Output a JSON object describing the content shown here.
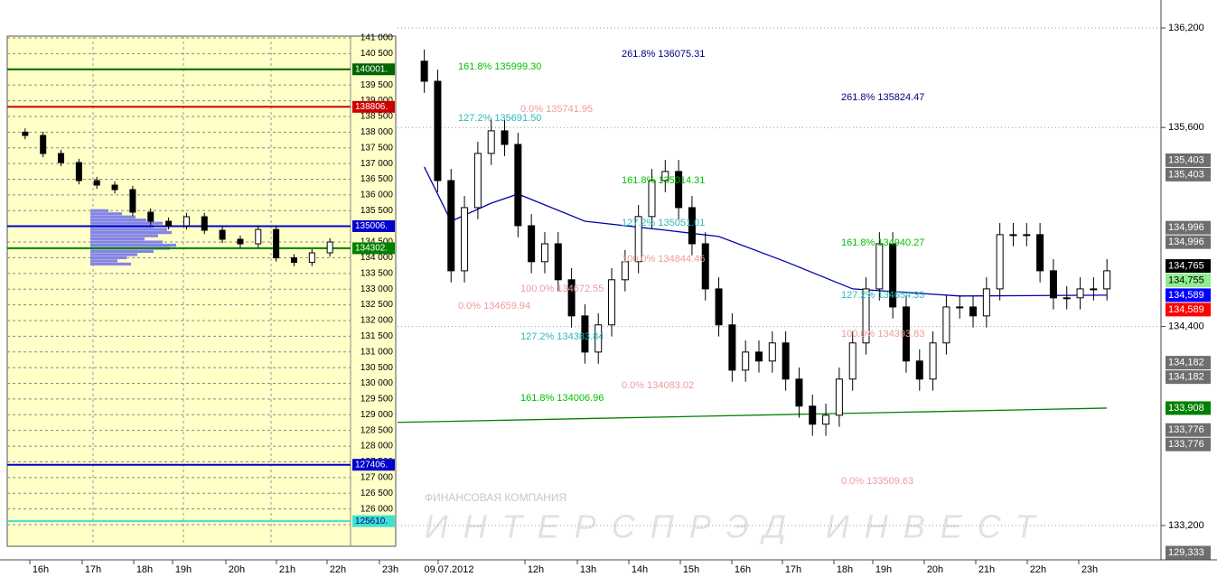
{
  "chart_data": [
    {
      "type": "candlestick",
      "x": [
        0,
        1,
        2,
        3,
        4,
        5,
        6,
        7,
        8,
        9,
        10,
        11,
        12,
        13,
        14,
        15,
        16,
        17,
        18,
        19,
        20,
        21,
        22,
        23,
        24,
        25,
        26,
        27,
        28,
        29,
        30,
        31,
        32,
        33,
        34,
        35,
        36,
        37,
        38,
        39,
        40,
        41,
        42,
        43,
        44,
        45,
        46,
        47,
        48,
        49,
        50,
        51
      ],
      "open": [
        136000,
        135879,
        135280,
        134736,
        135117,
        135444,
        135580,
        135498,
        135008,
        134791,
        134899,
        134682,
        134464,
        134246,
        134410,
        134682,
        134791,
        135063,
        135280,
        135335,
        135117,
        134899,
        134627,
        134410,
        134137,
        134246,
        134192,
        134301,
        134083,
        133920,
        133811,
        133865,
        134083,
        134301,
        134627,
        134899,
        134518,
        134192,
        134083,
        134301,
        134518,
        134518,
        134464,
        134627,
        134954,
        134954,
        134954,
        134736,
        134573,
        134573,
        134627,
        134627
      ],
      "high": [
        136070,
        135949,
        135350,
        135187,
        135514,
        135650,
        135650,
        135568,
        135078,
        134969,
        134969,
        134752,
        134534,
        134480,
        134752,
        134861,
        135133,
        135350,
        135405,
        135405,
        135187,
        134969,
        134697,
        134480,
        134316,
        134316,
        134371,
        134371,
        134153,
        133990,
        133935,
        134153,
        134371,
        134697,
        134969,
        134969,
        134588,
        134262,
        134371,
        134588,
        134588,
        134588,
        134697,
        135024,
        135024,
        135024,
        135024,
        134806,
        134643,
        134697,
        134697,
        134806
      ],
      "low": [
        135809,
        135210,
        134666,
        134666,
        135047,
        135374,
        135428,
        134938,
        134721,
        134721,
        134612,
        134394,
        134176,
        134176,
        134340,
        134612,
        134721,
        134993,
        135210,
        135047,
        134829,
        134557,
        134340,
        134067,
        134067,
        134122,
        134122,
        134013,
        133850,
        133741,
        133741,
        133795,
        134013,
        134231,
        134557,
        134448,
        134122,
        134013,
        134013,
        134231,
        134448,
        134394,
        134394,
        134557,
        134884,
        134884,
        134666,
        134503,
        134503,
        134503,
        134557,
        134557
      ],
      "close": [
        135879,
        135280,
        134736,
        135117,
        135444,
        135580,
        135498,
        135008,
        134791,
        134899,
        134682,
        134464,
        134246,
        134410,
        134682,
        134791,
        135063,
        135280,
        135335,
        135117,
        134899,
        134627,
        134410,
        134137,
        134246,
        134192,
        134301,
        134083,
        133920,
        133811,
        133865,
        134083,
        134301,
        134627,
        134899,
        134518,
        134192,
        134083,
        134301,
        134518,
        134518,
        134464,
        134627,
        134954,
        134954,
        134954,
        134736,
        134573,
        134573,
        134627,
        134627,
        134736
      ],
      "xlim": [
        -2,
        52
      ],
      "ylim": [
        132993,
        136369
      ],
      "yticks": [
        {
          "value": 136200,
          "label": "136,200"
        },
        {
          "value": 135600,
          "label": "135,600"
        },
        {
          "value": 134400,
          "label": "134,400"
        },
        {
          "value": 133200,
          "label": "133,200"
        }
      ],
      "grid": true,
      "lines": [
        {
          "color": "#0000b0",
          "x": [
            0,
            2,
            5,
            7,
            12,
            18,
            22,
            27,
            32,
            40,
            51
          ],
          "values": [
            135362,
            135035,
            135144,
            135199,
            135035,
            134981,
            134943,
            134791,
            134627,
            134584,
            134589
          ]
        },
        {
          "color": "#008000",
          "x": [
            -2,
            51
          ],
          "values": [
            133822,
            133908
          ]
        }
      ],
      "price_tags": [
        {
          "value": 135403,
          "label": "135,403",
          "color": "#6e6e6e",
          "text_color": "#ffffff"
        },
        {
          "value": 135403,
          "label": "135,403",
          "color": "#6e6e6e",
          "text_color": "#ffffff"
        },
        {
          "value": 134996,
          "label": "134,996",
          "color": "#6e6e6e",
          "text_color": "#ffffff"
        },
        {
          "value": 134996,
          "label": "134,996",
          "color": "#6e6e6e",
          "text_color": "#ffffff"
        },
        {
          "value": 134765,
          "label": "134,765",
          "color": "#000000",
          "text_color": "#ffffff"
        },
        {
          "value": 134755,
          "label": "134,755",
          "color": "#90ee90",
          "text_color": "#000000"
        },
        {
          "value": 134589,
          "label": "134,589",
          "color": "#0000ff",
          "text_color": "#ffffff"
        },
        {
          "value": 134589,
          "label": "134,589",
          "color": "#ff0000",
          "text_color": "#ffffff"
        },
        {
          "value": 134182,
          "label": "134,182",
          "color": "#6e6e6e",
          "text_color": "#ffffff"
        },
        {
          "value": 134182,
          "label": "134,182",
          "color": "#6e6e6e",
          "text_color": "#ffffff"
        },
        {
          "value": 133908,
          "label": "133,908",
          "color": "#008000",
          "text_color": "#ffffff"
        },
        {
          "value": 133776,
          "label": "133,776",
          "color": "#6e6e6e",
          "text_color": "#ffffff"
        },
        {
          "value": 133776,
          "label": "133,776",
          "color": "#6e6e6e",
          "text_color": "#ffffff"
        },
        {
          "value": 129333,
          "label": "129,333",
          "color": "#6e6e6e",
          "text_color": "#ffffff"
        }
      ],
      "annotations": [
        {
          "text": "161.8% 135999.30",
          "color": "#00c000"
        },
        {
          "text": "261.8% 136075.31",
          "color": "#000080"
        },
        {
          "text": "261.8% 135824.47",
          "color": "#000080"
        },
        {
          "text": "127.2% 135691.50",
          "color": "#30b8b8"
        },
        {
          "text": "0.0% 135741.95",
          "color": "#f09aa0"
        },
        {
          "text": "161.8% 135014.31",
          "color": "#00c000"
        },
        {
          "text": "127.2% 135051.01",
          "color": "#30b8b8"
        },
        {
          "text": "100.0% 134844.46",
          "color": "#f09aa0"
        },
        {
          "text": "161.8% 134940.27",
          "color": "#00c000"
        },
        {
          "text": "127.2% 134654.33",
          "color": "#30b8b8"
        },
        {
          "text": "0.0% 134659.94",
          "color": "#f09aa0"
        },
        {
          "text": "100.0% 134672.55",
          "color": "#f09aa0"
        },
        {
          "text": "127.2% 134383.84",
          "color": "#30b8b8"
        },
        {
          "text": "100.0% 134393.83",
          "color": "#f09aa0"
        },
        {
          "text": "0.0% 134083.02",
          "color": "#f09aa0"
        },
        {
          "text": "161.8% 134006.96",
          "color": "#00c000"
        },
        {
          "text": "0.0% 133509.63",
          "color": "#f09aa0"
        }
      ]
    },
    {
      "type": "candlestick",
      "x": [
        0,
        1,
        2,
        3,
        4,
        5,
        6,
        7,
        8,
        9,
        10,
        11,
        12,
        13,
        14,
        15,
        16,
        17
      ],
      "open": [
        138000,
        137894,
        137319,
        137032,
        136456,
        136313,
        136169,
        135450,
        135162,
        135018,
        135306,
        134875,
        134588,
        134443,
        134900,
        133996,
        133852,
        134156
      ],
      "high": [
        138120,
        138014,
        137439,
        137152,
        136576,
        136433,
        136289,
        135570,
        135282,
        135426,
        135426,
        134995,
        134708,
        135020,
        135020,
        134116,
        134276,
        134621
      ],
      "low": [
        137774,
        137199,
        136912,
        136336,
        136193,
        136049,
        135330,
        135042,
        134898,
        134898,
        134755,
        134468,
        134323,
        134323,
        133876,
        133732,
        133732,
        134036
      ],
      "close": [
        137894,
        137319,
        137032,
        136456,
        136313,
        136169,
        135450,
        135162,
        135018,
        135306,
        134875,
        134588,
        134443,
        134900,
        133996,
        133852,
        134156,
        134501
      ],
      "xlim": [
        -1,
        18
      ],
      "ylim": [
        124810,
        141058
      ],
      "yticks": [
        {
          "value": 141000,
          "label": "141 000"
        },
        {
          "value": 140500,
          "label": "140 500"
        },
        {
          "value": 140000,
          "label": "140 000"
        },
        {
          "value": 139500,
          "label": "139 500"
        },
        {
          "value": 139000,
          "label": "139 000"
        },
        {
          "value": 138500,
          "label": "138 500"
        },
        {
          "value": 138000,
          "label": "138 000"
        },
        {
          "value": 137500,
          "label": "137 500"
        },
        {
          "value": 137000,
          "label": "137 000"
        },
        {
          "value": 136500,
          "label": "136 500"
        },
        {
          "value": 136000,
          "label": "136 000"
        },
        {
          "value": 135500,
          "label": "135 500"
        },
        {
          "value": 135000,
          "label": "135 000"
        },
        {
          "value": 134500,
          "label": "134 500"
        },
        {
          "value": 134000,
          "label": "134 000"
        },
        {
          "value": 133500,
          "label": "133 500"
        },
        {
          "value": 133000,
          "label": "133 000"
        },
        {
          "value": 132500,
          "label": "132 500"
        },
        {
          "value": 132000,
          "label": "132 000"
        },
        {
          "value": 131500,
          "label": "131 500"
        },
        {
          "value": 131000,
          "label": "131 000"
        },
        {
          "value": 130500,
          "label": "130 500"
        },
        {
          "value": 130000,
          "label": "130 000"
        },
        {
          "value": 129500,
          "label": "129 500"
        },
        {
          "value": 129000,
          "label": "129 000"
        },
        {
          "value": 128500,
          "label": "128 500"
        },
        {
          "value": 128000,
          "label": "128 000"
        },
        {
          "value": 127500,
          "label": "127 500"
        },
        {
          "value": 127000,
          "label": "127 000"
        },
        {
          "value": 126500,
          "label": "126 500"
        },
        {
          "value": 126000,
          "label": "126 000"
        },
        {
          "value": 125500,
          "label": "125 500"
        }
      ],
      "grid": true,
      "levels": [
        {
          "value": 140001,
          "label": "140001.",
          "color": "#006400",
          "text_color": "#ffffff"
        },
        {
          "value": 138806,
          "label": "138806.",
          "color": "#cc0000",
          "text_color": "#ffffff"
        },
        {
          "value": 135006,
          "label": "135006.",
          "color": "#0000cc",
          "text_color": "#ffffff"
        },
        {
          "value": 134302,
          "label": "134302.",
          "color": "#008000",
          "text_color": "#ffffff"
        },
        {
          "value": 127406,
          "label": "127406.",
          "color": "#0000cc",
          "text_color": "#ffffff"
        },
        {
          "value": 125610,
          "label": "125610.",
          "color": "#40e0d0",
          "text_color": "#000080"
        }
      ],
      "profile": {
        "color": "#8484e6",
        "xlim": [
          0,
          100
        ],
        "levels": [
          135500,
          135400,
          135300,
          135200,
          135100,
          135000,
          134900,
          134800,
          134700,
          134600,
          134500,
          134400,
          134300,
          134200,
          134100,
          134000,
          133900,
          133800
        ],
        "values": [
          20,
          35,
          50,
          62,
          80,
          70,
          85,
          90,
          75,
          60,
          80,
          95,
          88,
          70,
          52,
          40,
          30,
          45
        ]
      }
    }
  ],
  "time_axis": {
    "labels": [
      "16h",
      "17h",
      "18h",
      "19h",
      "20h",
      "21h",
      "22h",
      "23h",
      "09.07.2012",
      "12h",
      "13h",
      "14h",
      "15h",
      "16h",
      "17h",
      "18h",
      "19h",
      "20h",
      "21h",
      "22h",
      "23h"
    ]
  },
  "watermark": {
    "company": "ФИНАНСОВАЯ КОМПАНИЯ",
    "name": "ИНТЕРСПРЭД ИНВЕСТ"
  }
}
